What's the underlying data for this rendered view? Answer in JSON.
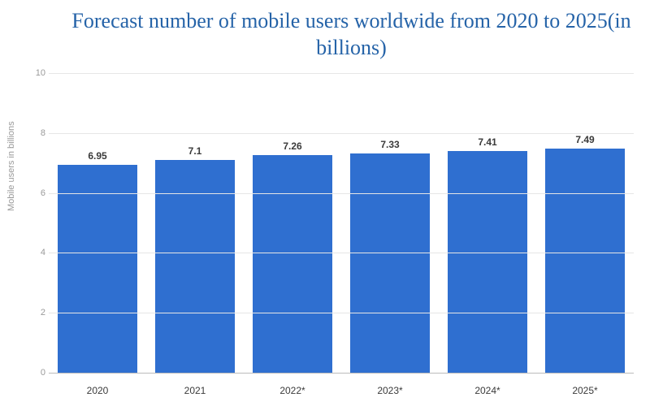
{
  "chart": {
    "type": "bar",
    "title": "Forecast number of mobile users worldwide from 2020 to 2025(in billions)",
    "title_color": "#2563a8",
    "title_fontsize": 26,
    "ylabel": "Mobile users in billions",
    "label_color": "#9a9a9a",
    "label_fontsize": 11,
    "categories": [
      "2020",
      "2021",
      "2022*",
      "2023*",
      "2024*",
      "2025*"
    ],
    "values": [
      6.95,
      7.1,
      7.26,
      7.33,
      7.41,
      7.49
    ],
    "value_labels": [
      "6.95",
      "7.1",
      "7.26",
      "7.33",
      "7.41",
      "7.49"
    ],
    "bar_color": "#2f6fd0",
    "ylim": [
      0,
      10
    ],
    "yticks": [
      0,
      2,
      4,
      6,
      8,
      10
    ],
    "grid_color": "#e6e6e6",
    "axis_color": "#bbbbbb",
    "background_color": "#ffffff",
    "value_label_fontsize": 12,
    "xtick_fontsize": 12,
    "bar_width_ratio": 0.82
  }
}
